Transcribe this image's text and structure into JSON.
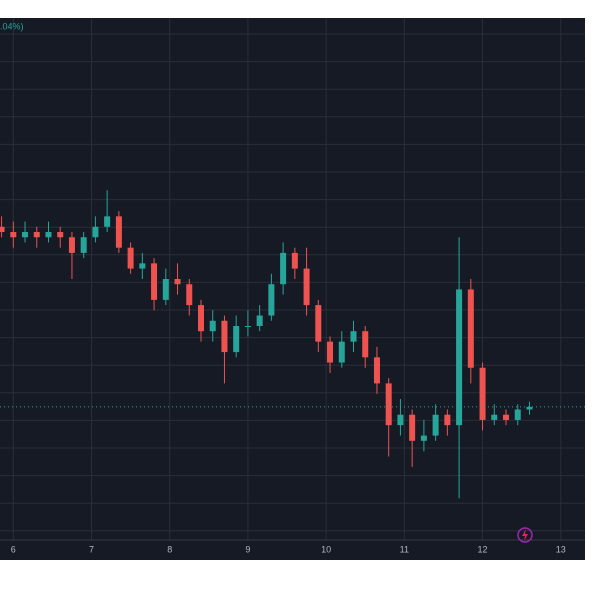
{
  "chart_data": {
    "type": "candlestick",
    "subtitle": ".04%)",
    "x": [
      5.85,
      6.0,
      6.15,
      6.3,
      6.45,
      6.6,
      6.75,
      6.9,
      7.05,
      7.2,
      7.35,
      7.5,
      7.65,
      7.8,
      7.95,
      8.1,
      8.25,
      8.4,
      8.55,
      8.7,
      8.85,
      9.0,
      9.15,
      9.3,
      9.45,
      9.6,
      9.75,
      9.9,
      10.05,
      10.2,
      10.35,
      10.5,
      10.65,
      10.8,
      10.95,
      11.1,
      11.25,
      11.4,
      11.55,
      11.7,
      11.85,
      12.0,
      12.15,
      12.3,
      12.45,
      12.6
    ],
    "open": [
      60,
      59,
      58,
      59,
      58,
      59,
      58,
      55,
      58,
      60,
      62,
      56,
      52,
      53,
      46,
      50,
      49,
      45,
      40,
      42,
      36,
      41,
      41,
      43,
      49,
      55,
      52,
      45,
      38,
      34,
      38,
      40,
      35,
      30,
      22,
      24,
      19,
      20,
      24,
      22,
      48,
      33,
      23,
      24,
      23,
      25
    ],
    "high": [
      62,
      61,
      61,
      60,
      61,
      60,
      59,
      59,
      62,
      67,
      63,
      57,
      55,
      54,
      52,
      53,
      50,
      46,
      44,
      43,
      43,
      44,
      45,
      51,
      57,
      56,
      56,
      46,
      39,
      40,
      42,
      41,
      37,
      31,
      27,
      25,
      23,
      26,
      25,
      58,
      50,
      34,
      26,
      25,
      26,
      26.5
    ],
    "low": [
      58,
      56,
      57,
      56,
      57,
      56,
      50,
      54,
      57,
      59,
      55,
      51,
      50,
      44,
      45,
      47,
      43,
      38,
      38,
      30,
      35,
      39,
      40,
      42,
      47,
      50,
      43,
      36,
      32,
      33,
      36,
      33,
      28,
      16,
      20,
      14,
      17,
      19,
      20,
      8,
      30,
      21,
      22,
      22,
      22,
      24
    ],
    "close": [
      59,
      58,
      59,
      58,
      59,
      58,
      55,
      58,
      60,
      62,
      56,
      52,
      53,
      46,
      50,
      49,
      45,
      40,
      42,
      36,
      41,
      41,
      43,
      49,
      55,
      52,
      45,
      38,
      34,
      38,
      40,
      35,
      30,
      22,
      24,
      19,
      20,
      24,
      22,
      48,
      33,
      23,
      24,
      23,
      25,
      25.5
    ],
    "up_color": "#26a69a",
    "down_color": "#ef5350",
    "xlim": [
      5.83,
      13.31
    ],
    "xticks": [
      6,
      7,
      8,
      9,
      10,
      11,
      12,
      13
    ],
    "ylim": [
      0,
      100
    ],
    "grid": true
  }
}
